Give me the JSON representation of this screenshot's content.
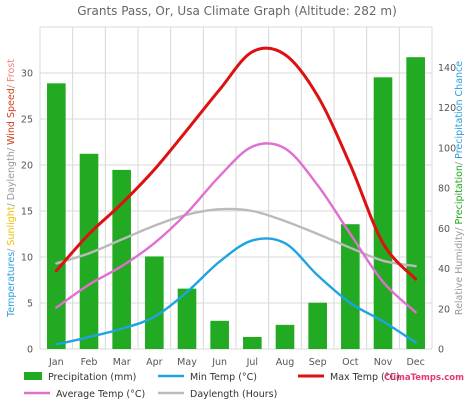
{
  "chart_data": {
    "type": "bar",
    "title": "Grants Pass, Or, Usa Climate Graph (Altitude: 282 m)",
    "categories": [
      "Jan",
      "Feb",
      "Mar",
      "Apr",
      "May",
      "Jun",
      "Jul",
      "Aug",
      "Sep",
      "Oct",
      "Nov",
      "Dec"
    ],
    "left_axis": {
      "range": [
        0,
        35
      ],
      "ticks": [
        0,
        5,
        10,
        15,
        20,
        25,
        30
      ],
      "label_parts": [
        {
          "text": "Temperatures",
          "color": "#2aa0e0"
        },
        {
          "text": "/ ",
          "color": "#999999"
        },
        {
          "text": "Sunlight",
          "color": "#f0c000"
        },
        {
          "text": "/ ",
          "color": "#999999"
        },
        {
          "text": "Daylength",
          "color": "#999999"
        },
        {
          "text": "/ ",
          "color": "#999999"
        },
        {
          "text": "Wind Speed",
          "color": "#d64020"
        },
        {
          "text": "/ ",
          "color": "#999999"
        },
        {
          "text": "Frost",
          "color": "#f08080"
        }
      ]
    },
    "right_axis": {
      "range": [
        0,
        160
      ],
      "ticks": [
        0,
        20,
        40,
        60,
        80,
        100,
        120,
        140
      ],
      "label_parts": [
        {
          "text": "Relative Humidity",
          "color": "#999999"
        },
        {
          "text": "/ ",
          "color": "#999999"
        },
        {
          "text": "Precipitation",
          "color": "#22aa22"
        },
        {
          "text": "/ ",
          "color": "#999999"
        },
        {
          "text": "Precipitation Chance",
          "color": "#2aa0e0"
        }
      ]
    },
    "series": [
      {
        "name": "Precipitation (mm)",
        "type": "bar",
        "axis": "right",
        "color": "#22aa22",
        "values": [
          132,
          97,
          89,
          46,
          30,
          14,
          6,
          12,
          23,
          62,
          135,
          145
        ]
      },
      {
        "name": "Min Temp (°C)",
        "type": "line",
        "axis": "left",
        "color": "#1ea4e0",
        "values": [
          0.5,
          1.3,
          2.2,
          3.5,
          6.2,
          9.5,
          11.8,
          11.5,
          8.0,
          5.0,
          3.0,
          0.7
        ]
      },
      {
        "name": "Max Temp (°C)",
        "type": "line",
        "axis": "left",
        "color": "#dd1111",
        "values": [
          8.5,
          12.5,
          15.8,
          19.5,
          23.8,
          28.2,
          32.3,
          32.0,
          27.5,
          20.0,
          11.5,
          7.6
        ]
      },
      {
        "name": "Average Temp (°C)",
        "type": "line",
        "axis": "left",
        "color": "#e070d0",
        "values": [
          4.5,
          7.0,
          9.0,
          11.5,
          14.8,
          18.8,
          22.0,
          21.8,
          17.8,
          12.5,
          7.3,
          4.0
        ]
      },
      {
        "name": "Daylength (Hours)",
        "type": "line",
        "axis": "left",
        "color": "#bbbbbb",
        "values": [
          9.3,
          10.4,
          11.9,
          13.4,
          14.6,
          15.2,
          15.0,
          13.9,
          12.5,
          11.0,
          9.6,
          9.0
        ]
      }
    ],
    "grid": true,
    "legend": "bottom"
  },
  "branding": "ClimaTemps.com"
}
